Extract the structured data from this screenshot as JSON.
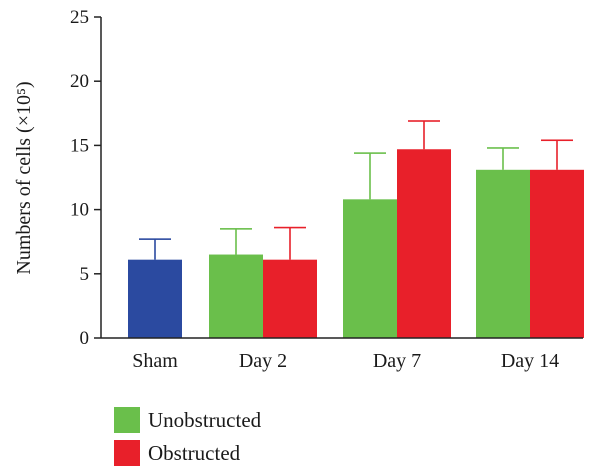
{
  "chart_data": {
    "type": "bar",
    "title": "",
    "xlabel": "",
    "ylabel": "Numbers of cells (×10⁵)",
    "ylim": [
      0,
      25
    ],
    "yticks": [
      0,
      5,
      10,
      15,
      20,
      25
    ],
    "categories": [
      "Sham",
      "Day 2",
      "Day 7",
      "Day 14"
    ],
    "grid": false,
    "legend": {
      "placement": "bottom-left",
      "entries": [
        {
          "label": "Unobstructed",
          "color": "#6abf4b"
        },
        {
          "label": "Obstructed",
          "color": "#e8202a"
        }
      ]
    },
    "bars": [
      {
        "category": "Sham",
        "group": "Sham",
        "value": 6.1,
        "error": 1.6,
        "color": "#2b4aa0"
      },
      {
        "category": "Day 2",
        "group": "Unobstructed",
        "value": 6.5,
        "error": 2.0,
        "color": "#6abf4b"
      },
      {
        "category": "Day 2",
        "group": "Obstructed",
        "value": 6.1,
        "error": 2.5,
        "color": "#e8202a"
      },
      {
        "category": "Day 7",
        "group": "Unobstructed",
        "value": 10.8,
        "error": 3.6,
        "color": "#6abf4b"
      },
      {
        "category": "Day 7",
        "group": "Obstructed",
        "value": 14.7,
        "error": 2.2,
        "color": "#e8202a"
      },
      {
        "category": "Day 14",
        "group": "Unobstructed",
        "value": 13.1,
        "error": 1.7,
        "color": "#6abf4b"
      },
      {
        "category": "Day 14",
        "group": "Obstructed",
        "value": 13.1,
        "error": 2.3,
        "color": "#e8202a"
      }
    ]
  }
}
